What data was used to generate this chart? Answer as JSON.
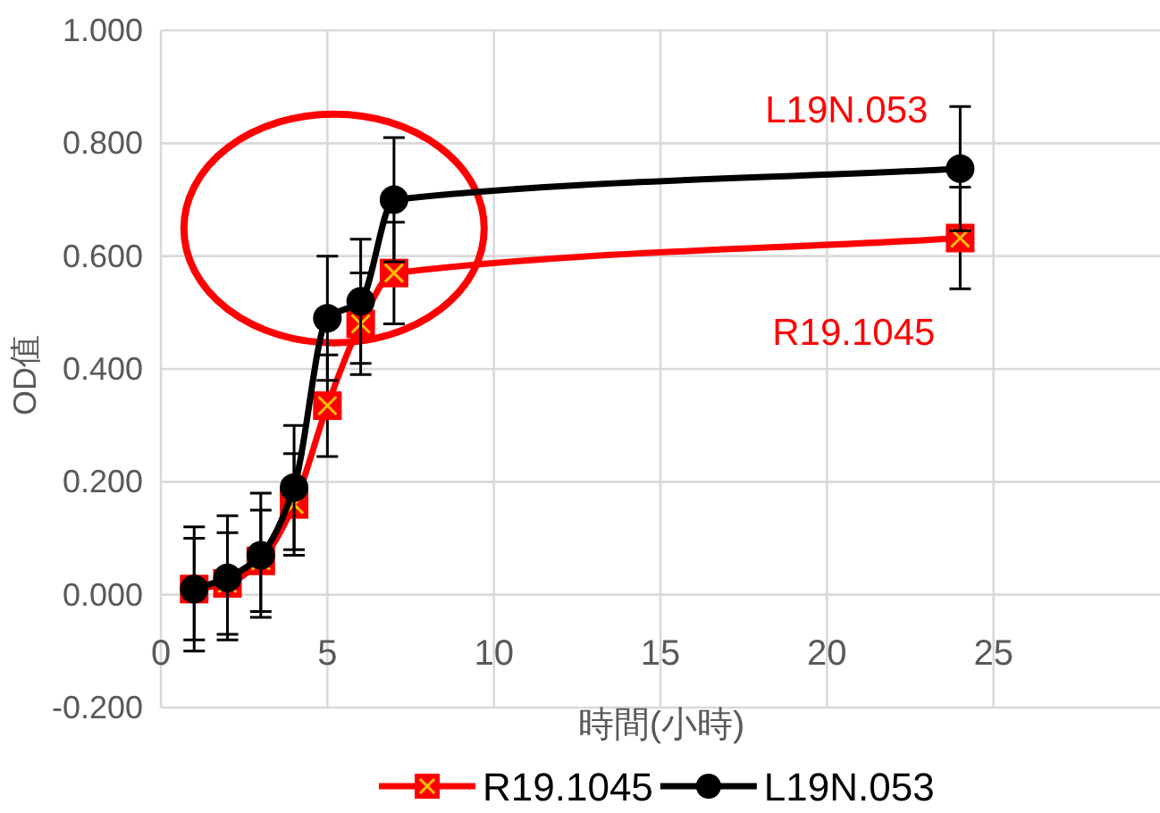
{
  "chart_data": {
    "type": "line",
    "xlabel": "時間(小時)",
    "ylabel": "OD值",
    "xlim": [
      0,
      30
    ],
    "xticks": [
      0,
      5,
      10,
      15,
      20,
      25
    ],
    "ylim": [
      -0.2,
      1.0
    ],
    "yticks": [
      {
        "value": -0.2,
        "label": "-0.200"
      },
      {
        "value": 0,
        "label": "0.000"
      },
      {
        "value": 0.2,
        "label": "0.200"
      },
      {
        "value": 0.4,
        "label": "0.400"
      },
      {
        "value": 0.6,
        "label": "0.600"
      },
      {
        "value": 0.8,
        "label": "0.800"
      },
      {
        "value": 1.0,
        "label": "1.000"
      }
    ],
    "grid": true,
    "legend": "bottom",
    "series": [
      {
        "name": "R19.1045",
        "color": "#ff0000",
        "marker": "square",
        "x": [
          1,
          2,
          3,
          4,
          5,
          6,
          7,
          24
        ],
        "values": [
          0.01,
          0.02,
          0.06,
          0.16,
          0.335,
          0.48,
          0.57,
          0.632
        ],
        "errors": [
          0.09,
          0.09,
          0.09,
          0.09,
          0.09,
          0.09,
          0.09,
          0.09
        ]
      },
      {
        "name": "L19N.053",
        "color": "#000000",
        "marker": "circle",
        "x": [
          1,
          2,
          3,
          4,
          5,
          6,
          7,
          24
        ],
        "values": [
          0.01,
          0.03,
          0.07,
          0.19,
          0.49,
          0.52,
          0.7,
          0.755
        ],
        "errors": [
          0.11,
          0.11,
          0.11,
          0.11,
          0.11,
          0.11,
          0.11,
          0.11
        ]
      }
    ],
    "annotations": [
      {
        "text": "L19N.053",
        "x": 24,
        "y": 0.755
      },
      {
        "text": "R19.1045",
        "x": 24,
        "y": 0.632
      }
    ]
  }
}
